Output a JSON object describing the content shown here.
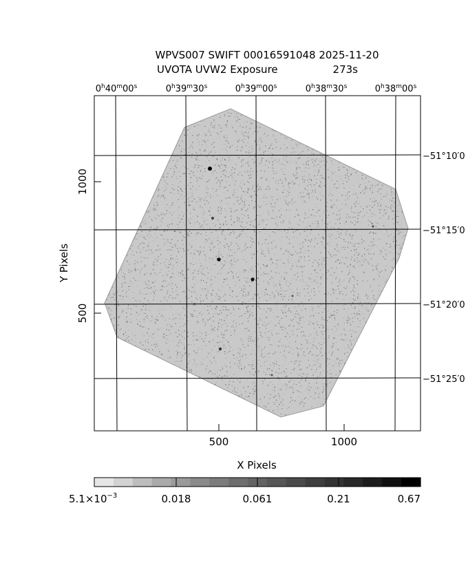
{
  "header": {
    "line1": "WPVS007 SWIFT 00016591048 2025-11-20",
    "line2_label": "UVOTA UVW2 Exposure",
    "line2_value": "273s"
  },
  "axes": {
    "xlabel": "X Pixels",
    "ylabel": "Y Pixels",
    "x_ticks": [
      "500",
      "1000"
    ],
    "y_ticks": [
      "1000",
      "500"
    ],
    "ra_ticks": [
      {
        "h": "0",
        "m": "40",
        "s": "00"
      },
      {
        "h": "0",
        "m": "39",
        "s": "30"
      },
      {
        "h": "0",
        "m": "39",
        "s": "00"
      },
      {
        "h": "0",
        "m": "38",
        "s": "30"
      },
      {
        "h": "0",
        "m": "38",
        "s": "00"
      }
    ],
    "dec_ticks": [
      "−51°10′0",
      "−51°15′0",
      "−51°20′0",
      "−51°25′0"
    ]
  },
  "colorbar": {
    "labels": [
      "5.1×10",
      "0.018",
      "0.061",
      "0.21",
      "0.67"
    ],
    "first_exponent": "−3",
    "grey_levels": [
      "#e6e6e6",
      "#d2d2d2",
      "#bdbdbd",
      "#aaaaaa",
      "#9a9a9a",
      "#8a8a8a",
      "#7c7c7c",
      "#6e6e6e",
      "#626262",
      "#565656",
      "#4a4a4a",
      "#3e3e3e",
      "#333333",
      "#282828",
      "#1c1c1c",
      "#101010",
      "#000000"
    ]
  },
  "image": {
    "noise_color": "#8c8c8c",
    "sources": [
      {
        "name": "source-bright-1"
      },
      {
        "name": "source-bright-2"
      },
      {
        "name": "source-bright-3"
      },
      {
        "name": "source-faint-1"
      },
      {
        "name": "source-faint-2"
      },
      {
        "name": "source-faint-3"
      },
      {
        "name": "source-faint-4"
      },
      {
        "name": "source-faint-5"
      }
    ]
  }
}
